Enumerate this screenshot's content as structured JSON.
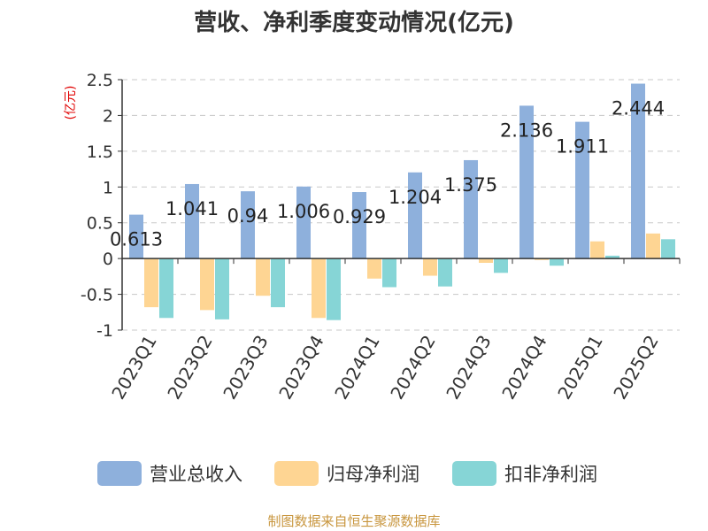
{
  "chart_data": {
    "type": "bar",
    "title": "营收、净利季度变动情况(亿元)",
    "ylabel": "(亿元)",
    "ylim": [
      -1,
      2.5
    ],
    "yticks": [
      "2.5",
      "2",
      "1.5",
      "1",
      "0.5",
      "0",
      "-0.5",
      "-1"
    ],
    "ytick_values": [
      2.5,
      2,
      1.5,
      1,
      0.5,
      0,
      -0.5,
      -1
    ],
    "grid": true,
    "legend_position": "bottom",
    "categories": [
      "2023Q1",
      "2023Q2",
      "2023Q3",
      "2023Q4",
      "2024Q1",
      "2024Q2",
      "2024Q3",
      "2024Q4",
      "2025Q1",
      "2025Q2"
    ],
    "series": [
      {
        "name": "营业总收入",
        "color": "#8eb0dc",
        "values": [
          0.613,
          1.041,
          0.94,
          1.006,
          0.929,
          1.204,
          1.375,
          2.136,
          1.911,
          2.444
        ],
        "labels": [
          "0.613",
          "1.041",
          "0.94",
          "1.006",
          "0.929",
          "1.204",
          "1.375",
          "2.136",
          "1.911",
          "2.444"
        ]
      },
      {
        "name": "归母净利润",
        "color": "#fed593",
        "values": [
          -0.68,
          -0.72,
          -0.52,
          -0.83,
          -0.28,
          -0.24,
          -0.06,
          -0.02,
          0.24,
          0.35
        ]
      },
      {
        "name": "扣非净利润",
        "color": "#86d5d6",
        "values": [
          -0.83,
          -0.85,
          -0.68,
          -0.86,
          -0.4,
          -0.39,
          -0.2,
          -0.1,
          0.04,
          0.27
        ]
      }
    ]
  },
  "source_text": "制图数据来自恒生聚源数据库"
}
